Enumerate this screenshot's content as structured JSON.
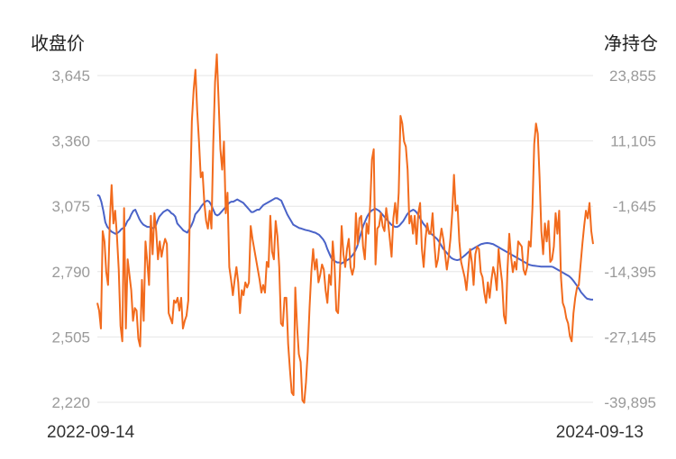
{
  "chart_data": {
    "type": "line",
    "left_axis_title": "收盘价",
    "right_axis_title": "净持仓",
    "left_ticks": [
      "3,645",
      "3,360",
      "3,075",
      "2,790",
      "2,505",
      "2,220"
    ],
    "right_ticks": [
      "23,855",
      "11,105",
      "-1,645",
      "-14,395",
      "-27,145",
      "-39,895"
    ],
    "left_range": [
      2220,
      3645
    ],
    "right_range": [
      -39895,
      23855
    ],
    "x_labels": [
      "2022-09-14",
      "2024-09-13"
    ],
    "grid": true,
    "series": [
      {
        "color": "#4a63c8",
        "axis": "left",
        "values": [
          3125,
          3120,
          3095,
          3055,
          3005,
          2985,
          2975,
          2965,
          2960,
          2955,
          2958,
          2965,
          2975,
          2980,
          2990,
          3010,
          3020,
          3040,
          3055,
          3060,
          3040,
          3020,
          3005,
          2995,
          2990,
          2985,
          2985,
          2980,
          2980,
          2985,
          3010,
          3030,
          3040,
          3050,
          3055,
          3060,
          3055,
          3045,
          3040,
          3030,
          3000,
          2990,
          2980,
          2970,
          2965,
          2960,
          2975,
          2990,
          3010,
          3040,
          3050,
          3060,
          3075,
          3085,
          3095,
          3100,
          3095,
          3080,
          3060,
          3040,
          3035,
          3040,
          3050,
          3060,
          3070,
          3080,
          3090,
          3095,
          3095,
          3100,
          3105,
          3100,
          3095,
          3090,
          3080,
          3070,
          3060,
          3050,
          3050,
          3055,
          3060,
          3060,
          3070,
          3080,
          3085,
          3090,
          3095,
          3100,
          3105,
          3110,
          3110,
          3105,
          3100,
          3080,
          3060,
          3040,
          3025,
          3010,
          2995,
          2990,
          2985,
          2980,
          2978,
          2975,
          2972,
          2970,
          2968,
          2965,
          2962,
          2960,
          2955,
          2950,
          2940,
          2930,
          2915,
          2890,
          2870,
          2850,
          2840,
          2835,
          2830,
          2830,
          2825,
          2830,
          2835,
          2840,
          2845,
          2855,
          2865,
          2880,
          2900,
          2930,
          2960,
          2990,
          3010,
          3030,
          3045,
          3055,
          3060,
          3065,
          3060,
          3055,
          3045,
          3035,
          3025,
          3015,
          3005,
          2995,
          2990,
          2985,
          2985,
          2990,
          3000,
          3010,
          3025,
          3040,
          3050,
          3055,
          3060,
          3055,
          3045,
          3030,
          3015,
          3000,
          2990,
          2975,
          2965,
          2955,
          2948,
          2940,
          2932,
          2920,
          2905,
          2890,
          2880,
          2870,
          2860,
          2850,
          2845,
          2842,
          2840,
          2842,
          2848,
          2855,
          2862,
          2870,
          2878,
          2885,
          2890,
          2895,
          2900,
          2905,
          2910,
          2912,
          2914,
          2915,
          2914,
          2912,
          2910,
          2905,
          2900,
          2895,
          2890,
          2885,
          2880,
          2875,
          2870,
          2865,
          2860,
          2855,
          2850,
          2845,
          2840,
          2835,
          2830,
          2825,
          2820,
          2818,
          2816,
          2815,
          2814,
          2813,
          2812,
          2812,
          2812,
          2812,
          2812,
          2812,
          2810,
          2805,
          2800,
          2795,
          2790,
          2785,
          2780,
          2775,
          2770,
          2762,
          2752,
          2740,
          2728,
          2715,
          2700,
          2690,
          2680,
          2672,
          2670,
          2668,
          2668
        ]
      },
      {
        "color": "#f26b1d",
        "axis": "right",
        "values": [
          -20500,
          -22000,
          -25500,
          -6500,
          -8500,
          -14500,
          -17000,
          -4500,
          2500,
          -5000,
          -2500,
          -7500,
          -14000,
          -25000,
          -28000,
          -2000,
          -25500,
          -12000,
          -15000,
          -18000,
          -24000,
          -21500,
          -22000,
          -27500,
          -29000,
          -16000,
          -24000,
          -8500,
          -12500,
          -17000,
          -3500,
          -11000,
          -3000,
          -6500,
          -12000,
          -8500,
          -11500,
          -9500,
          -8000,
          -9000,
          -22500,
          -23500,
          -24500,
          -20000,
          -20500,
          -19500,
          -22000,
          -19500,
          -25500,
          -24000,
          -23000,
          -20000,
          0,
          15000,
          21000,
          25000,
          17000,
          11000,
          4000,
          5000,
          -1000,
          -4500,
          -6000,
          -2500,
          -6000,
          10500,
          22500,
          28000,
          19000,
          9500,
          5500,
          11000,
          -3000,
          1000,
          -13500,
          -16000,
          -19000,
          -16000,
          -13500,
          -16500,
          -22500,
          -18000,
          -19000,
          -16500,
          -17500,
          -16500,
          -5500,
          -8000,
          -10000,
          -12000,
          -14000,
          -16000,
          -18500,
          -17000,
          -18500,
          -12500,
          -13500,
          -3500,
          -10500,
          -12000,
          -4500,
          -7500,
          -13500,
          -24500,
          -25000,
          -19500,
          -19500,
          -28500,
          -33500,
          -38000,
          -38500,
          -17500,
          -25000,
          -30500,
          -32000,
          -39500,
          -40000,
          -36000,
          -30000,
          -21500,
          -14500,
          -10000,
          -14000,
          -12000,
          -16500,
          -15000,
          -13000,
          -14000,
          -18000,
          -20500,
          -15000,
          -17000,
          -8500,
          -13000,
          -22000,
          -22500,
          -15000,
          -5500,
          -11000,
          -13500,
          -10000,
          -8000,
          -13500,
          -15000,
          -13500,
          -3000,
          -9000,
          -4000,
          -3500,
          -9500,
          -12000,
          -5000,
          -7000,
          -1500,
          7500,
          9500,
          -13000,
          -6000,
          -5500,
          -3000,
          -5500,
          -6500,
          -2000,
          -4500,
          -8000,
          -11500,
          -4000,
          -1000,
          -5000,
          1000,
          16000,
          14500,
          11000,
          10000,
          5500,
          -5000,
          -3500,
          -7000,
          -3500,
          -9000,
          -3000,
          -1000,
          -10000,
          -13500,
          -8000,
          -5000,
          -7000,
          -7000,
          -3000,
          -9000,
          -13500,
          -12000,
          -8500,
          -6000,
          -8000,
          -11000,
          -14000,
          -11500,
          -8000,
          -3000,
          4500,
          -2500,
          -1500,
          -8500,
          -12500,
          -14000,
          -15500,
          -18000,
          -14000,
          -10000,
          -12500,
          -17000,
          -11000,
          -9500,
          -10000,
          -14500,
          -15500,
          -18500,
          -20500,
          -16500,
          -19500,
          -16000,
          -13500,
          -15000,
          -18000,
          -10000,
          -13500,
          -16500,
          -23000,
          -24500,
          -14000,
          -7000,
          -11500,
          -14500,
          -12500,
          -14000,
          -8500,
          -9000,
          -9500,
          -14000,
          -15000,
          -13500,
          -8500,
          -9500,
          -2000,
          10500,
          14500,
          12500,
          4000,
          -6500,
          -11000,
          -5000,
          -8500,
          -4500,
          -12500,
          -12000,
          -9500,
          -3000,
          -7000,
          -2500,
          -15500,
          -20500,
          -21500,
          -23500,
          -24500,
          -27000,
          -28000,
          -22500,
          -19500,
          -17500,
          -17000,
          -13000,
          -9000,
          -5500,
          -2500,
          -4000,
          -1000,
          -6500,
          -9000
        ]
      }
    ]
  }
}
